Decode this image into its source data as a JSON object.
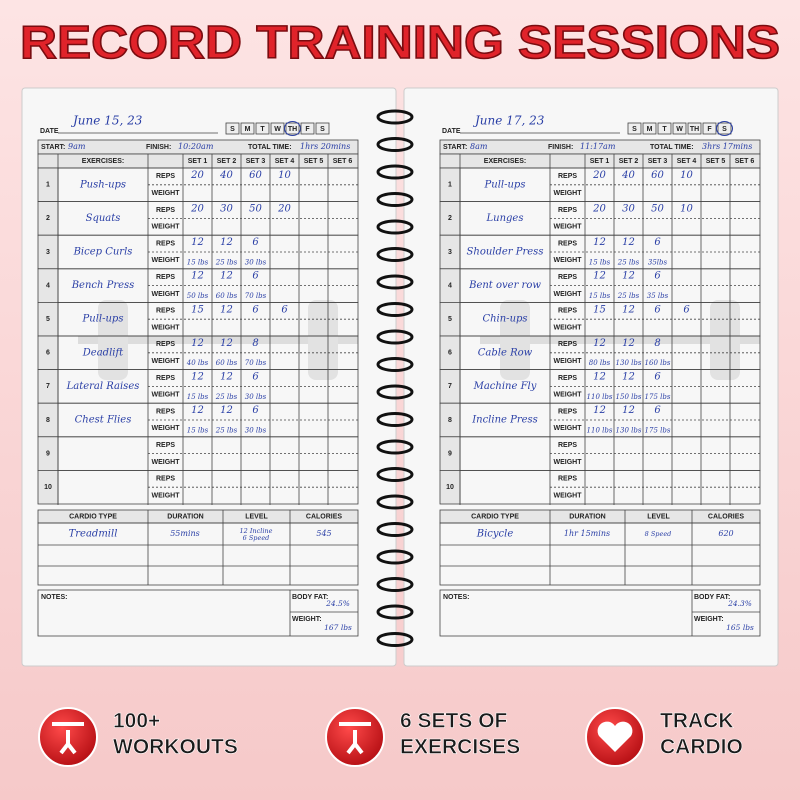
{
  "title": "RECORD TRAINING SESSIONS",
  "form": {
    "date": "DATE",
    "days": [
      "S",
      "M",
      "T",
      "W",
      "TH",
      "F",
      "S"
    ],
    "start": "START:",
    "finish": "FINISH:",
    "total_time": "TOTAL TIME:",
    "exercises": "EXERCISES:",
    "sets": [
      "SET 1",
      "SET 2",
      "SET 3",
      "SET 4",
      "SET 5",
      "SET 6"
    ],
    "reps": "REPS",
    "weight": "WEIGHT",
    "row_numbers": [
      1,
      2,
      3,
      4,
      5,
      6,
      7,
      8,
      9,
      10
    ],
    "cardio_type": "CARDIO TYPE",
    "duration": "DURATION",
    "level": "LEVEL",
    "calories": "CALORIES",
    "notes": "NOTES:",
    "body_fat": "BODY FAT:",
    "body_weight": "WEIGHT:"
  },
  "pages": [
    {
      "date": "June 15, 23",
      "circled_day": 4,
      "start": "9am",
      "finish": "10:20am",
      "total_time": "1hrs 20mins",
      "exercises": [
        {
          "name": "Push-ups",
          "reps": [
            "20",
            "40",
            "60",
            "10"
          ],
          "weight": []
        },
        {
          "name": "Squats",
          "reps": [
            "20",
            "30",
            "50",
            "20"
          ],
          "weight": []
        },
        {
          "name": "Bicep Curls",
          "reps": [
            "12",
            "12",
            "6"
          ],
          "weight": [
            "15 lbs",
            "25 lbs",
            "30 lbs"
          ]
        },
        {
          "name": "Bench Press",
          "reps": [
            "12",
            "12",
            "6"
          ],
          "weight": [
            "50 lbs",
            "60 lbs",
            "70 lbs"
          ]
        },
        {
          "name": "Pull-ups",
          "reps": [
            "15",
            "12",
            "6",
            "6"
          ],
          "weight": []
        },
        {
          "name": "Deadlift",
          "reps": [
            "12",
            "12",
            "8"
          ],
          "weight": [
            "40 lbs",
            "60 lbs",
            "70 lbs"
          ]
        },
        {
          "name": "Lateral Raises",
          "reps": [
            "12",
            "12",
            "6"
          ],
          "weight": [
            "15 lbs",
            "25 lbs",
            "30 lbs"
          ]
        },
        {
          "name": "Chest Flies",
          "reps": [
            "12",
            "12",
            "6"
          ],
          "weight": [
            "15 lbs",
            "25 lbs",
            "30 lbs"
          ]
        }
      ],
      "cardio": {
        "type": "Treadmill",
        "duration": "55mins",
        "level": [
          "12 Incline",
          "6 Speed"
        ],
        "calories": "545"
      },
      "body_fat": "24.5%",
      "body_weight": "167 lbs"
    },
    {
      "date": "June 17, 23",
      "circled_day": 6,
      "start": "8am",
      "finish": "11:17am",
      "total_time": "3hrs 17mins",
      "exercises": [
        {
          "name": "Pull-ups",
          "reps": [
            "20",
            "40",
            "60",
            "10"
          ],
          "weight": []
        },
        {
          "name": "Lunges",
          "reps": [
            "20",
            "30",
            "50",
            "10"
          ],
          "weight": []
        },
        {
          "name": "Shoulder Press",
          "reps": [
            "12",
            "12",
            "6"
          ],
          "weight": [
            "15 lbs",
            "25 lbs",
            "35lbs"
          ]
        },
        {
          "name": "Bent over row",
          "reps": [
            "12",
            "12",
            "6"
          ],
          "weight": [
            "15 lbs",
            "25 lbs",
            "35 lbs"
          ]
        },
        {
          "name": "Chin-ups",
          "reps": [
            "15",
            "12",
            "6",
            "6"
          ],
          "weight": []
        },
        {
          "name": "Cable Row",
          "reps": [
            "12",
            "12",
            "8"
          ],
          "weight": [
            "80 lbs",
            "130 lbs",
            "160 lbs"
          ]
        },
        {
          "name": "Machine Fly",
          "reps": [
            "12",
            "12",
            "6"
          ],
          "weight": [
            "110 lbs",
            "150 lbs",
            "175 lbs"
          ]
        },
        {
          "name": "Incline Press",
          "reps": [
            "12",
            "12",
            "6"
          ],
          "weight": [
            "110 lbs",
            "130 lbs",
            "175 lbs"
          ]
        }
      ],
      "cardio": {
        "type": "Bicycle",
        "duration": "1hr 15mins",
        "level": [
          "8 Speed"
        ],
        "calories": "620"
      },
      "body_fat": "24.3%",
      "body_weight": "165 lbs"
    }
  ],
  "badges": [
    [
      "100+",
      "WORKOUTS"
    ],
    [
      "6 SETS OF",
      "EXERCISES"
    ],
    [
      "TRACK",
      "CARDIO"
    ]
  ]
}
